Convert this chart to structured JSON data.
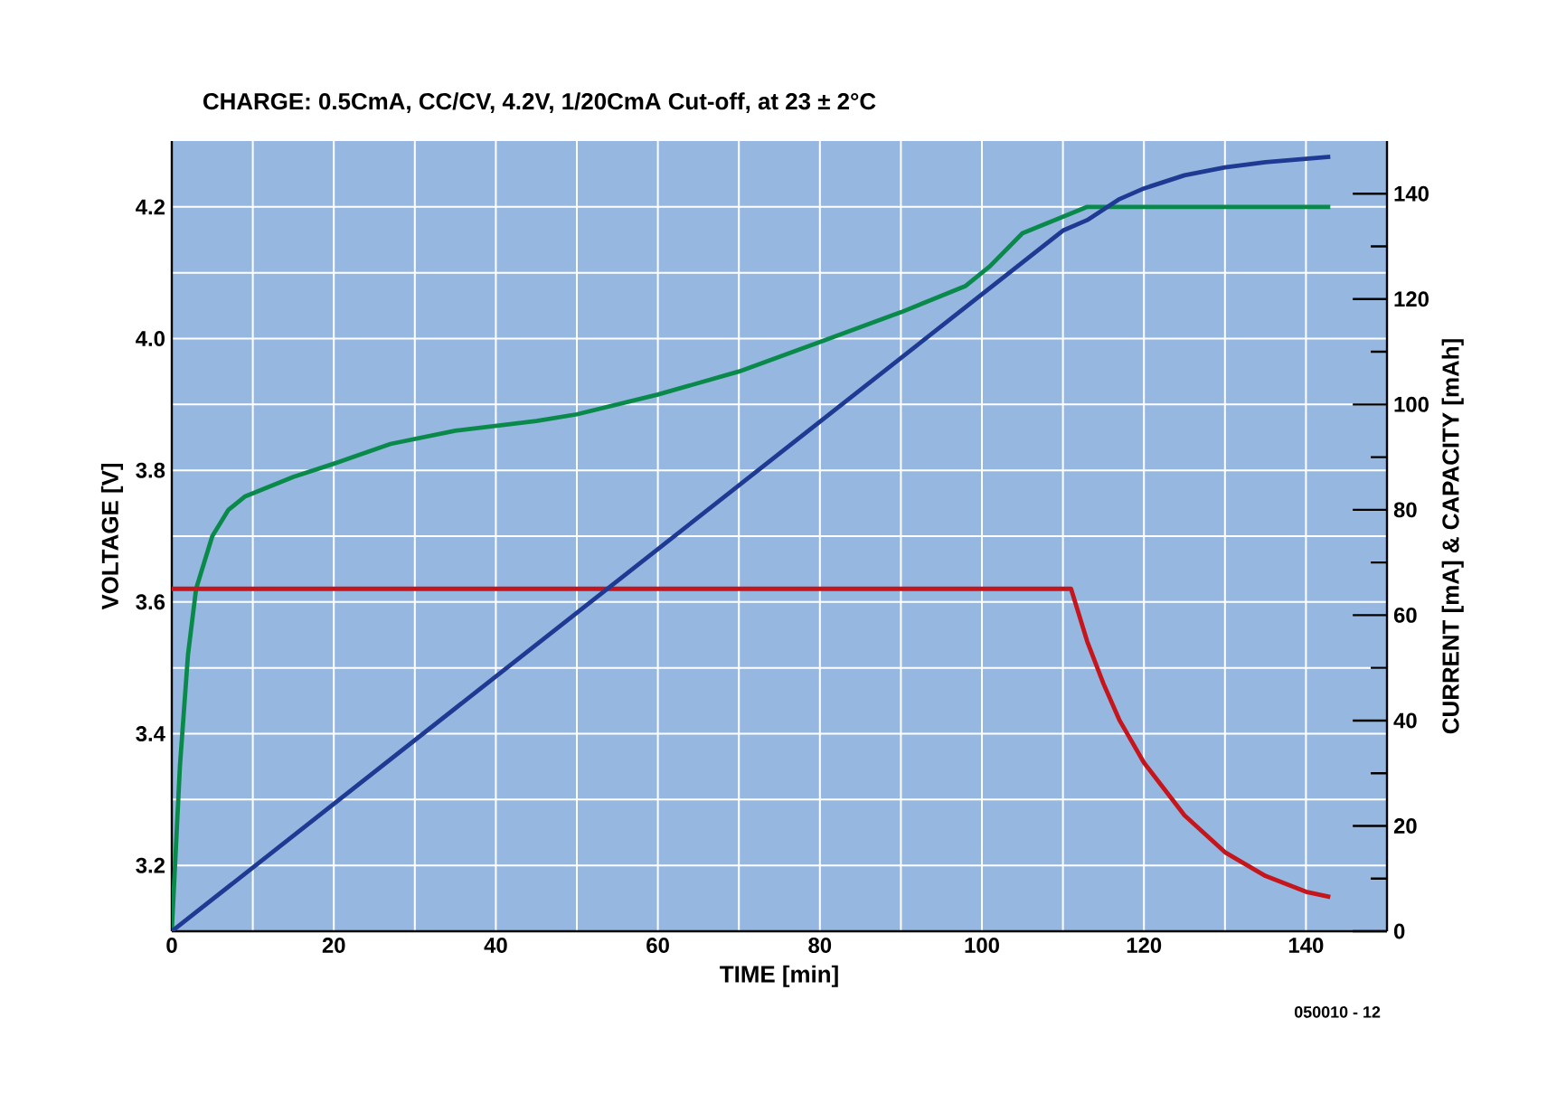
{
  "chart_data": {
    "type": "line",
    "title": "CHARGE: 0.5CmA, CC/CV, 4.2V, 1/20CmA Cut-off, at 23 ± 2°C",
    "xlabel": "TIME [min]",
    "ylabel": "VOLTAGE [V]",
    "y2label": "CURRENT [mA]  &  CAPACITY [mAh]",
    "annotations": [
      "050010 - 12"
    ],
    "xlim": [
      0,
      150
    ],
    "xticks": [
      0,
      20,
      40,
      60,
      80,
      100,
      120,
      140
    ],
    "ylim": [
      3.1,
      4.3
    ],
    "yticks": [
      3.2,
      3.4,
      3.6,
      3.8,
      {
        "value": 4.0,
        "label": "4.0"
      },
      4.2
    ],
    "y2lim": [
      0,
      150
    ],
    "y2ticks": [
      0,
      {
        "value": 10,
        "label": null
      },
      20,
      {
        "value": 30,
        "label": null
      },
      40,
      {
        "value": 50,
        "label": null
      },
      60,
      {
        "value": 70,
        "label": null
      },
      80,
      {
        "value": 90,
        "label": null
      },
      100,
      {
        "value": 110,
        "label": null
      },
      120,
      {
        "value": 130,
        "label": null
      },
      140
    ],
    "grid": true,
    "series": [
      {
        "color": "#0a8a4a",
        "x": [
          0,
          1,
          2,
          3,
          5,
          7,
          9,
          15,
          20,
          27,
          35,
          45,
          50,
          60,
          70,
          80,
          90,
          98,
          101,
          105,
          110,
          113,
          120,
          143
        ],
        "values": [
          3.1,
          3.35,
          3.52,
          3.62,
          3.7,
          3.74,
          3.76,
          3.79,
          3.81,
          3.84,
          3.86,
          3.875,
          3.885,
          3.915,
          3.95,
          3.995,
          4.04,
          4.08,
          4.11,
          4.16,
          4.185,
          4.2,
          4.2,
          4.2
        ]
      },
      {
        "color": "#c4161c",
        "axis": "y2",
        "x": [
          0,
          111,
          113,
          115,
          117,
          120,
          125,
          130,
          135,
          140,
          143
        ],
        "values": [
          65,
          65,
          55,
          47,
          40,
          32,
          22,
          15,
          10.5,
          7.5,
          6.5
        ]
      },
      {
        "color": "#1f3a93",
        "axis": "y2",
        "x": [
          0,
          110,
          113,
          117,
          120,
          125,
          130,
          135,
          143
        ],
        "values": [
          0,
          133,
          135,
          139,
          141,
          143.5,
          145,
          146,
          147
        ]
      }
    ]
  }
}
